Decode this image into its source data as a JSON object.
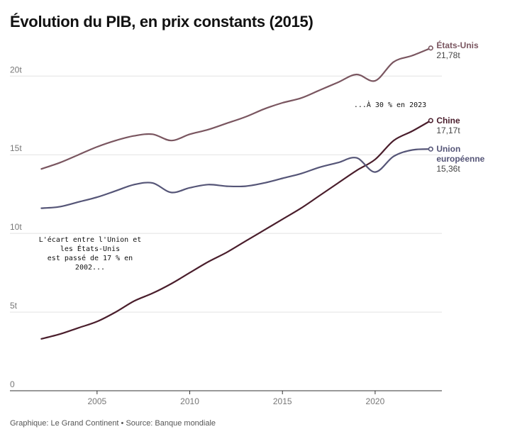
{
  "header": {
    "title": "Évolution du PIB, en prix constants (2015)"
  },
  "footer": {
    "text": "Graphique: Le Grand Continent • Source: Banque mondiale"
  },
  "chart_data": {
    "type": "line",
    "title": "Évolution du PIB, en prix constants (2015)",
    "xlabel": "",
    "ylabel": "",
    "xlim": [
      2000.3,
      2023.6
    ],
    "ylim": [
      0,
      22.4
    ],
    "x_ticks": [
      {
        "value": 2005,
        "label": "2005"
      },
      {
        "value": 2010,
        "label": "2010"
      },
      {
        "value": 2015,
        "label": "2015"
      },
      {
        "value": 2020,
        "label": "2020"
      }
    ],
    "y_ticks": [
      {
        "value": 0,
        "label": "0"
      },
      {
        "value": 5,
        "label": "5t"
      },
      {
        "value": 10,
        "label": "10t"
      },
      {
        "value": 15,
        "label": "15t"
      },
      {
        "value": 20,
        "label": "20t"
      }
    ],
    "grid": "horizontal",
    "x": [
      2002,
      2003,
      2004,
      2005,
      2006,
      2007,
      2008,
      2009,
      2010,
      2011,
      2012,
      2013,
      2014,
      2015,
      2016,
      2017,
      2018,
      2019,
      2020,
      2021,
      2022,
      2023
    ],
    "series": [
      {
        "name": "États-Unis",
        "color": "#7a5660",
        "values": [
          14.1,
          14.5,
          15.0,
          15.5,
          15.9,
          16.2,
          16.3,
          15.9,
          16.3,
          16.6,
          17.0,
          17.4,
          17.9,
          18.3,
          18.6,
          19.1,
          19.6,
          20.1,
          19.7,
          20.9,
          21.3,
          21.78
        ],
        "end_label": "États-Unis",
        "end_value": "21,78t"
      },
      {
        "name": "Chine",
        "color": "#4a1e2c",
        "values": [
          3.3,
          3.6,
          4.0,
          4.4,
          5.0,
          5.7,
          6.2,
          6.8,
          7.5,
          8.2,
          8.8,
          9.5,
          10.2,
          10.9,
          11.6,
          12.4,
          13.2,
          14.0,
          14.7,
          15.9,
          16.5,
          17.17
        ],
        "end_label": "Chine",
        "end_value": "17,17t"
      },
      {
        "name": "Union européenne",
        "color": "#555577",
        "values": [
          11.6,
          11.7,
          12.0,
          12.3,
          12.7,
          13.1,
          13.2,
          12.6,
          12.9,
          13.1,
          13.0,
          13.0,
          13.2,
          13.5,
          13.8,
          14.2,
          14.5,
          14.8,
          13.9,
          14.9,
          15.3,
          15.36
        ],
        "end_label_lines": [
          "Union",
          "européenne"
        ],
        "end_value": "15,36t"
      }
    ],
    "annotations": [
      {
        "lines": [
          "L'écart entre l'Union et",
          "les États-Unis",
          "est passé de 17 % en",
          "2002..."
        ]
      },
      {
        "lines": [
          "...À 30 % en 2023"
        ]
      }
    ]
  }
}
